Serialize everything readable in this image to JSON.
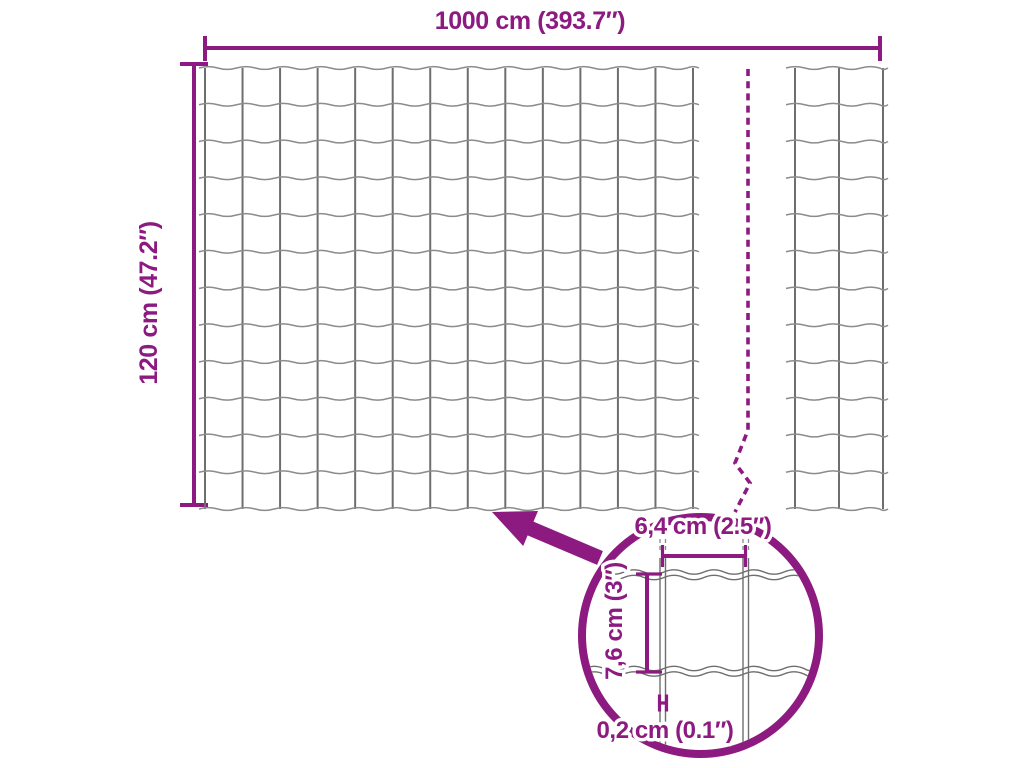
{
  "colors": {
    "accent": "#8D1A80",
    "wire_dark": "#6e6e6e",
    "wire_light": "#8c8c8c"
  },
  "labels": {
    "total_width": "1000 cm (393.7″)",
    "total_height": "120 cm (47.2″)"
  },
  "detail": {
    "mesh_width": "6,4 cm (2.5″)",
    "mesh_height": "7,6 cm (3″)",
    "wire_thickness": "0,2 cm (0.1″)"
  },
  "mesh": {
    "panel1": {
      "columns": 13,
      "rows": 12
    },
    "panel2": {
      "columns": 2,
      "rows": 12
    }
  }
}
